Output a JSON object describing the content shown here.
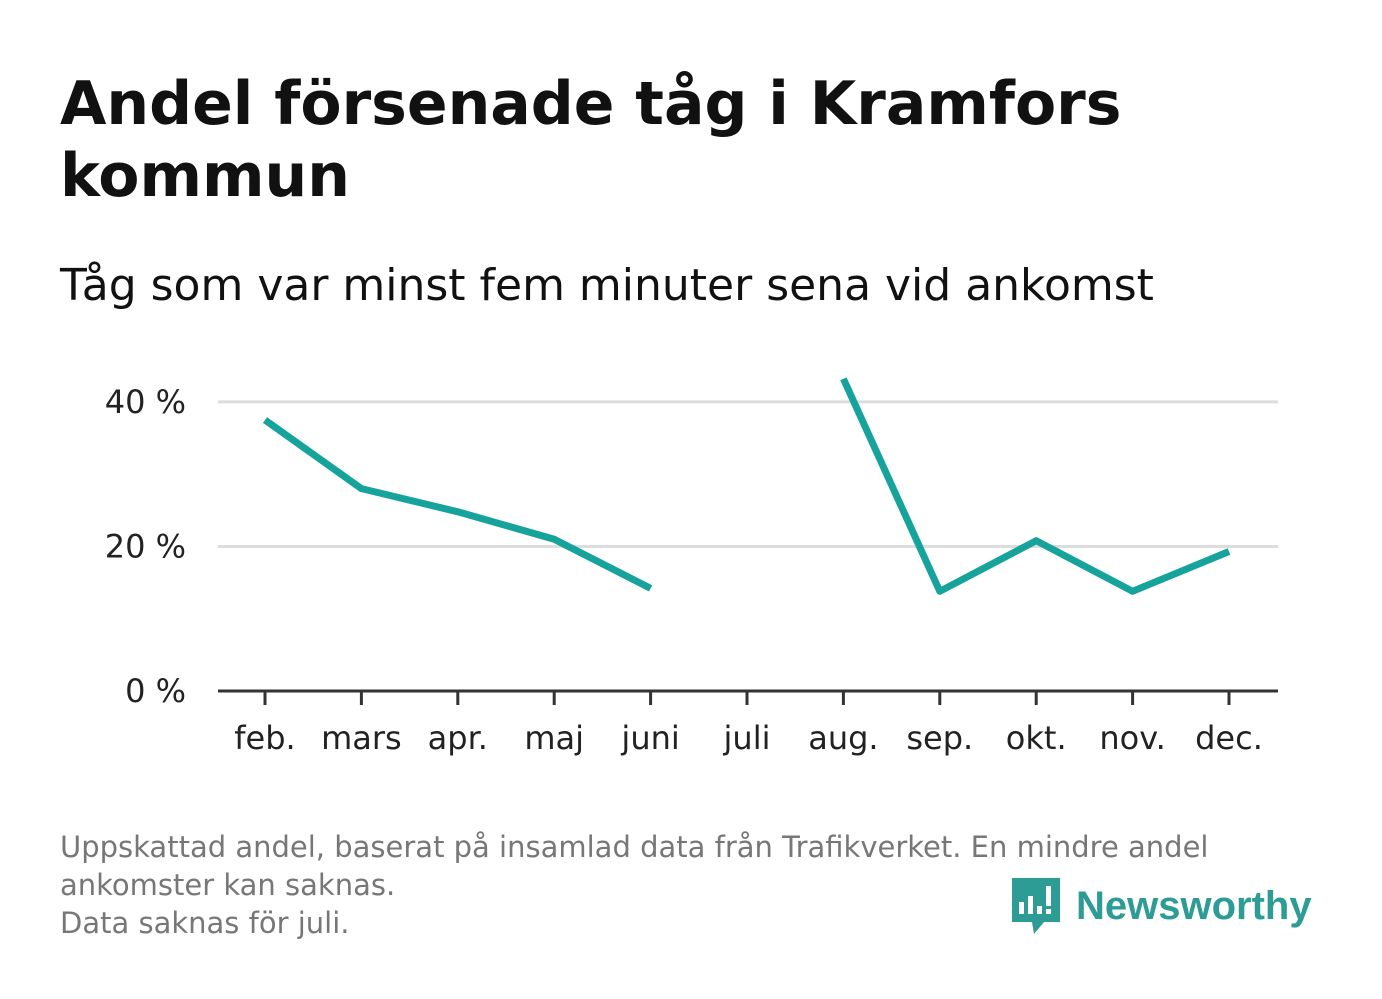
{
  "title": "Andel försenade tåg i Kramfors kommun",
  "subtitle": "Tåg som var minst fem minuter sena vid ankomst",
  "footer": {
    "line1": "Uppskattad andel, baserat på insamlad data från Trafikverket. En mindre andel",
    "line2": "ankomster kan saknas.",
    "line3": "Data saknas för juli."
  },
  "brand": {
    "name": "Newsworthy",
    "icon": "newsworthy-logo-icon",
    "color": "#2d9c95"
  },
  "chart_data": {
    "type": "line",
    "categories": [
      "feb.",
      "mars",
      "apr.",
      "maj",
      "juni",
      "juli",
      "aug.",
      "sep.",
      "okt.",
      "nov.",
      "dec."
    ],
    "series": [
      {
        "values": [
          37.5,
          28.0,
          24.8,
          21.0,
          14.2,
          null,
          43.2,
          13.8,
          20.8,
          13.8,
          19.3
        ]
      }
    ],
    "yticks": [
      0,
      20,
      40
    ],
    "ytick_labels": [
      "0 %",
      "20 %",
      "40 %"
    ],
    "ylim": [
      0,
      44
    ],
    "grid": true,
    "line_color": "#16a39c"
  }
}
